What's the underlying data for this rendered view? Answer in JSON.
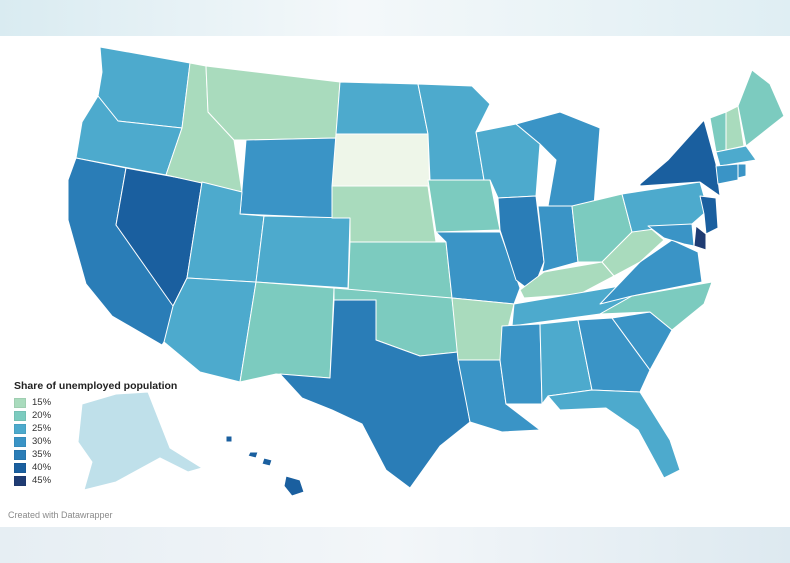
{
  "legend": {
    "title": "Share of unemployed population",
    "items": [
      {
        "label": "15%",
        "color": "#a9dbbd"
      },
      {
        "label": "20%",
        "color": "#7ccbbf"
      },
      {
        "label": "25%",
        "color": "#4daacd"
      },
      {
        "label": "30%",
        "color": "#3a94c6"
      },
      {
        "label": "35%",
        "color": "#2a7db7"
      },
      {
        "label": "40%",
        "color": "#1a5f9f"
      },
      {
        "label": "45%",
        "color": "#1f3c73"
      }
    ]
  },
  "credit": "Created with Datawrapper",
  "states": [
    {
      "id": "WA",
      "level": "25%"
    },
    {
      "id": "OR",
      "level": "25%"
    },
    {
      "id": "CA",
      "level": "35%"
    },
    {
      "id": "NV",
      "level": "40%"
    },
    {
      "id": "ID",
      "level": "15%"
    },
    {
      "id": "MT",
      "level": "15%"
    },
    {
      "id": "WY",
      "level": "30%"
    },
    {
      "id": "UT",
      "level": "25%"
    },
    {
      "id": "AZ",
      "level": "25%"
    },
    {
      "id": "CO",
      "level": "25%"
    },
    {
      "id": "NM",
      "level": "20%"
    },
    {
      "id": "ND",
      "level": "25%"
    },
    {
      "id": "SD",
      "level": "10%",
      "color": "#eef6e9"
    },
    {
      "id": "NE",
      "level": "15%"
    },
    {
      "id": "KS",
      "level": "20%"
    },
    {
      "id": "OK",
      "level": "20%"
    },
    {
      "id": "TX",
      "level": "35%"
    },
    {
      "id": "MN",
      "level": "25%"
    },
    {
      "id": "IA",
      "level": "20%"
    },
    {
      "id": "MO",
      "level": "30%"
    },
    {
      "id": "AR",
      "level": "15%"
    },
    {
      "id": "LA",
      "level": "30%"
    },
    {
      "id": "WI",
      "level": "25%"
    },
    {
      "id": "IL",
      "level": "35%"
    },
    {
      "id": "MI",
      "level": "30%"
    },
    {
      "id": "IN",
      "level": "30%"
    },
    {
      "id": "OH",
      "level": "20%"
    },
    {
      "id": "KY",
      "level": "15%"
    },
    {
      "id": "TN",
      "level": "25%"
    },
    {
      "id": "MS",
      "level": "30%"
    },
    {
      "id": "AL",
      "level": "25%"
    },
    {
      "id": "GA",
      "level": "30%"
    },
    {
      "id": "FL",
      "level": "25%"
    },
    {
      "id": "SC",
      "level": "30%"
    },
    {
      "id": "NC",
      "level": "20%"
    },
    {
      "id": "VA",
      "level": "30%"
    },
    {
      "id": "WV",
      "level": "15%"
    },
    {
      "id": "PA",
      "level": "25%"
    },
    {
      "id": "NY",
      "level": "40%"
    },
    {
      "id": "NJ",
      "level": "40%"
    },
    {
      "id": "DE",
      "level": "45%"
    },
    {
      "id": "MD",
      "level": "30%"
    },
    {
      "id": "VT",
      "level": "20%"
    },
    {
      "id": "NH",
      "level": "15%"
    },
    {
      "id": "ME",
      "level": "20%"
    },
    {
      "id": "MA",
      "level": "25%"
    },
    {
      "id": "CT",
      "level": "30%"
    },
    {
      "id": "RI",
      "level": "30%"
    },
    {
      "id": "AK",
      "level": "10%",
      "color": "#bfe0ea"
    },
    {
      "id": "HI",
      "level": "40%"
    }
  ]
}
